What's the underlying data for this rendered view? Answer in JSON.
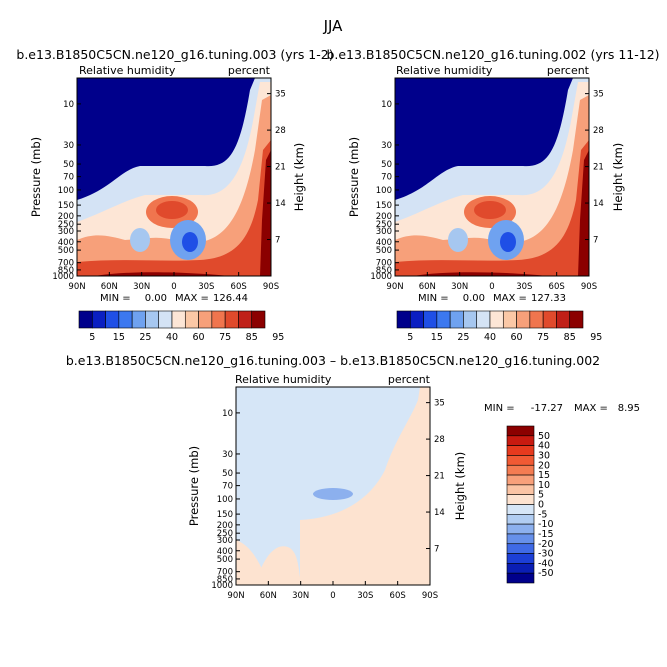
{
  "page": {
    "title": "JJA"
  },
  "colors": {
    "frame": "#000000",
    "deep_blue": "#00008b",
    "dark_red": "#8b0000"
  },
  "chart_data": [
    {
      "type": "heatmap",
      "title": "b.e13.B1850C5CN.ne120_g16.tuning.003 (yrs 1-2)",
      "left_label": "Relative humidity",
      "right_label": "percent",
      "ylabel": "Pressure (mb)",
      "ylabel_right": "Height (km)",
      "x_ticks": [
        "90N",
        "60N",
        "30N",
        "0",
        "30S",
        "60S",
        "90S"
      ],
      "y_ticks": [
        "10",
        "30",
        "50",
        "70",
        "100",
        "150",
        "200",
        "250",
        "300",
        "400",
        "500",
        "700",
        "850",
        "1000"
      ],
      "height_ticks": [
        "35",
        "28",
        "21",
        "14",
        "7"
      ],
      "stats": {
        "min_label": "MIN =",
        "min": "0.00",
        "max_label": "MAX =",
        "max": "126.44"
      },
      "colorbar": {
        "levels": [
          "5",
          "15",
          "25",
          "40",
          "60",
          "75",
          "85",
          "95"
        ],
        "colors": [
          "#00008b",
          "#0a1fc2",
          "#1f4fe6",
          "#3c78f0",
          "#6fa2f0",
          "#a6c7f0",
          "#d4e3f5",
          "#fde6d6",
          "#fbc8a6",
          "#f7a07a",
          "#f0754e",
          "#e04a2c",
          "#c02018",
          "#8b0000"
        ]
      }
    },
    {
      "type": "heatmap",
      "title": "b.e13.B1850C5CN.ne120_g16.tuning.002 (yrs 11-12)",
      "left_label": "Relative humidity",
      "right_label": "percent",
      "ylabel": "Pressure (mb)",
      "ylabel_right": "Height (km)",
      "x_ticks": [
        "90N",
        "60N",
        "30N",
        "0",
        "30S",
        "60S",
        "90S"
      ],
      "y_ticks": [
        "10",
        "30",
        "50",
        "70",
        "100",
        "150",
        "200",
        "250",
        "300",
        "400",
        "500",
        "700",
        "850",
        "1000"
      ],
      "height_ticks": [
        "35",
        "28",
        "21",
        "14",
        "7"
      ],
      "stats": {
        "min_label": "MIN =",
        "min": "0.00",
        "max_label": "MAX =",
        "max": "127.33"
      },
      "colorbar": {
        "levels": [
          "5",
          "15",
          "25",
          "40",
          "60",
          "75",
          "85",
          "95"
        ],
        "colors": [
          "#00008b",
          "#0a1fc2",
          "#1f4fe6",
          "#3c78f0",
          "#6fa2f0",
          "#a6c7f0",
          "#d4e3f5",
          "#fde6d6",
          "#fbc8a6",
          "#f7a07a",
          "#f0754e",
          "#e04a2c",
          "#c02018",
          "#8b0000"
        ]
      }
    },
    {
      "type": "heatmap",
      "title": "b.e13.B1850C5CN.ne120_g16.tuning.003 – b.e13.B1850C5CN.ne120_g16.tuning.002",
      "left_label": "Relative humidity",
      "right_label": "percent",
      "ylabel": "Pressure (mb)",
      "ylabel_right": "Height (km)",
      "x_ticks": [
        "90N",
        "60N",
        "30N",
        "0",
        "30S",
        "60S",
        "90S"
      ],
      "y_ticks": [
        "10",
        "30",
        "50",
        "70",
        "100",
        "150",
        "200",
        "250",
        "300",
        "400",
        "500",
        "700",
        "850",
        "1000"
      ],
      "height_ticks": [
        "35",
        "28",
        "21",
        "14",
        "7"
      ],
      "stats": {
        "min_label": "MIN =",
        "min": "-17.27",
        "max_label": "MAX =",
        "max": "8.95"
      },
      "colorbar": {
        "levels": [
          "50",
          "40",
          "30",
          "20",
          "15",
          "10",
          "5",
          "0",
          "-5",
          "-10",
          "-15",
          "-20",
          "-30",
          "-40",
          "-50"
        ],
        "colors": [
          "#8b0000",
          "#c81a10",
          "#e63a1e",
          "#f05a34",
          "#f47c52",
          "#f8a07a",
          "#fbc4a4",
          "#fde3d0",
          "#d6e6f7",
          "#b1cdf2",
          "#8cb0ee",
          "#6690ea",
          "#3f6ae6",
          "#1c3fd6",
          "#0a1eb4",
          "#00008b"
        ]
      }
    }
  ]
}
